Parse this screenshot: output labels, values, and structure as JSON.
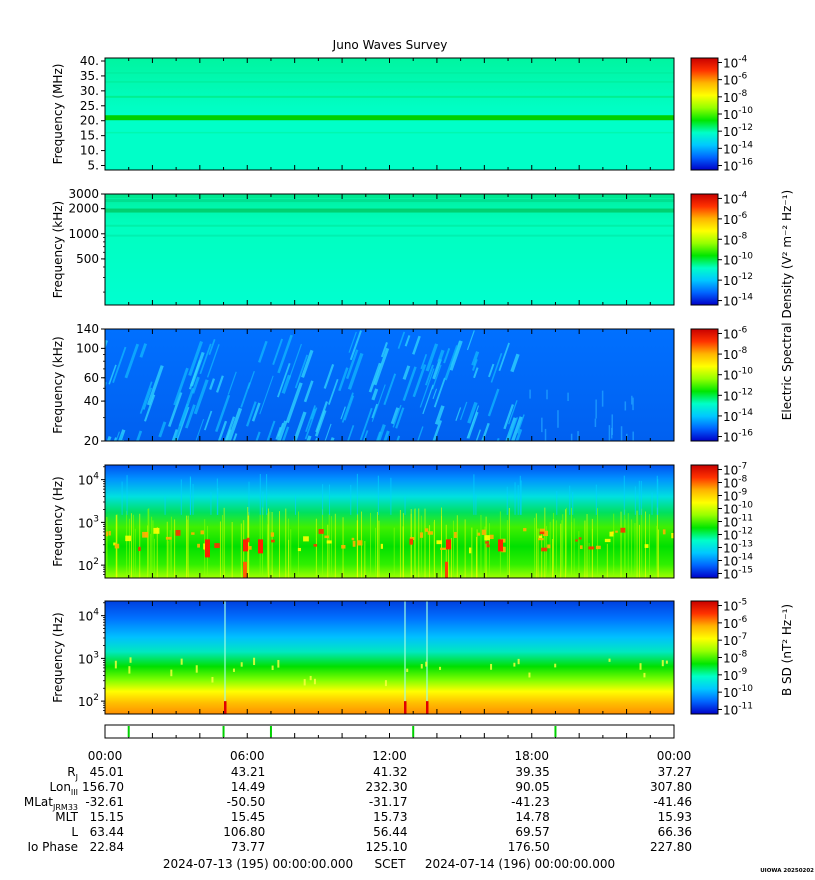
{
  "title": "Juno Waves Survey",
  "colors": {
    "background": "#00ffc8",
    "colormap": [
      "#0000c8",
      "#0064ff",
      "#00c8ff",
      "#00ffc8",
      "#00e600",
      "#96ff00",
      "#ffff00",
      "#ffb400",
      "#ff3200",
      "#c80000"
    ]
  },
  "chart_data": [
    {
      "type": "heatmap",
      "name": "panel-1",
      "ylabel": "Frequency (MHz)",
      "y_scale": "linear",
      "y_ticks": [
        "40.",
        "35.",
        "30.",
        "25.",
        "20.",
        "15.",
        "10.",
        "5."
      ],
      "y_tick_values": [
        40,
        35,
        30,
        25,
        20,
        15,
        10,
        5
      ],
      "ylim": [
        3.5,
        41
      ],
      "colorbar_label": "",
      "colorbar_ticks": [
        {
          "base": "10",
          "exp": "-4"
        },
        {
          "base": "10",
          "exp": "-6"
        },
        {
          "base": "10",
          "exp": "-8"
        },
        {
          "base": "10",
          "exp": "-10"
        },
        {
          "base": "10",
          "exp": "-12"
        },
        {
          "base": "10",
          "exp": "-14"
        },
        {
          "base": "10",
          "exp": "-16"
        }
      ]
    },
    {
      "type": "heatmap",
      "name": "panel-2",
      "ylabel": "Frequency (kHz)",
      "y_scale": "log",
      "y_ticks": [
        "3000",
        "2000",
        "1000",
        "500"
      ],
      "y_tick_values": [
        3000,
        2000,
        1000,
        500
      ],
      "ylim": [
        140,
        3000
      ],
      "colorbar_label": "Electric Spectral Density (V² m⁻² Hz⁻¹)",
      "colorbar_ticks": [
        {
          "base": "10",
          "exp": "-4"
        },
        {
          "base": "10",
          "exp": "-6"
        },
        {
          "base": "10",
          "exp": "-8"
        },
        {
          "base": "10",
          "exp": "-10"
        },
        {
          "base": "10",
          "exp": "-12"
        },
        {
          "base": "10",
          "exp": "-14"
        }
      ]
    },
    {
      "type": "heatmap",
      "name": "panel-3",
      "ylabel": "Frequency (kHz)",
      "y_scale": "log",
      "y_ticks": [
        "140",
        "100",
        "60",
        "40",
        "20"
      ],
      "y_tick_values": [
        140,
        100,
        60,
        40,
        20
      ],
      "ylim": [
        20,
        140
      ],
      "colorbar_label": "",
      "colorbar_ticks": [
        {
          "base": "10",
          "exp": "-6"
        },
        {
          "base": "10",
          "exp": "-8"
        },
        {
          "base": "10",
          "exp": "-10"
        },
        {
          "base": "10",
          "exp": "-12"
        },
        {
          "base": "10",
          "exp": "-14"
        },
        {
          "base": "10",
          "exp": "-16"
        }
      ]
    },
    {
      "type": "heatmap",
      "name": "panel-4",
      "ylabel": "Frequency (Hz)",
      "y_scale": "log",
      "y_ticks": [
        {
          "base": "10",
          "exp": "4"
        },
        {
          "base": "10",
          "exp": "3"
        },
        {
          "base": "10",
          "exp": "2"
        }
      ],
      "y_tick_values": [
        10000,
        1000,
        100
      ],
      "ylim": [
        50,
        22000
      ],
      "colorbar_label": "",
      "colorbar_ticks": [
        {
          "base": "10",
          "exp": "-7"
        },
        {
          "base": "10",
          "exp": "-8"
        },
        {
          "base": "10",
          "exp": "-9"
        },
        {
          "base": "10",
          "exp": "-10"
        },
        {
          "base": "10",
          "exp": "-11"
        },
        {
          "base": "10",
          "exp": "-12"
        },
        {
          "base": "10",
          "exp": "-13"
        },
        {
          "base": "10",
          "exp": "-14"
        },
        {
          "base": "10",
          "exp": "-15"
        }
      ]
    },
    {
      "type": "heatmap",
      "name": "panel-5",
      "ylabel": "Frequency (Hz)",
      "y_scale": "log",
      "y_ticks": [
        {
          "base": "10",
          "exp": "4"
        },
        {
          "base": "10",
          "exp": "3"
        },
        {
          "base": "10",
          "exp": "2"
        }
      ],
      "y_tick_values": [
        10000,
        1000,
        100
      ],
      "ylim": [
        50,
        22000
      ],
      "colorbar_label": "B SD (nT² Hz⁻¹)",
      "colorbar_ticks": [
        {
          "base": "10",
          "exp": "-5"
        },
        {
          "base": "10",
          "exp": "-6"
        },
        {
          "base": "10",
          "exp": "-7"
        },
        {
          "base": "10",
          "exp": "-8"
        },
        {
          "base": "10",
          "exp": "-9"
        },
        {
          "base": "10",
          "exp": "-10"
        },
        {
          "base": "10",
          "exp": "-11"
        }
      ]
    }
  ],
  "time_axis": {
    "labels": [
      "00:00",
      "06:00",
      "12:00",
      "18:00",
      "00:00"
    ],
    "label_hours": [
      0,
      6,
      12,
      18,
      24
    ],
    "event_marks_hours": [
      1.0,
      5.0,
      7.0,
      13.0,
      19.0
    ]
  },
  "ephemeris": [
    {
      "name": "R",
      "sub": "J",
      "values": [
        "45.01",
        "43.21",
        "41.32",
        "39.35",
        "37.27"
      ]
    },
    {
      "name": "Lon",
      "sub": "III",
      "values": [
        "156.70",
        "14.49",
        "232.30",
        "90.05",
        "307.80"
      ]
    },
    {
      "name": "MLat",
      "sub": "JRM33",
      "values": [
        "-32.61",
        "-50.50",
        "-31.17",
        "-41.23",
        "-41.46"
      ]
    },
    {
      "name": "MLT",
      "sub": "",
      "values": [
        "15.15",
        "15.45",
        "15.73",
        "14.78",
        "15.93"
      ]
    },
    {
      "name": "L",
      "sub": "",
      "values": [
        "63.44",
        "106.80",
        "56.44",
        "69.57",
        "66.36"
      ]
    },
    {
      "name": "Io Phase",
      "sub": "",
      "values": [
        "22.84",
        "73.77",
        "125.10",
        "176.50",
        "227.80"
      ]
    }
  ],
  "footer": {
    "start": "2024-07-13 (195) 00:00:00.000",
    "scet": "SCET",
    "end": "2024-07-14 (196) 00:00:00.000",
    "credit": "UIOWA 20250202"
  }
}
